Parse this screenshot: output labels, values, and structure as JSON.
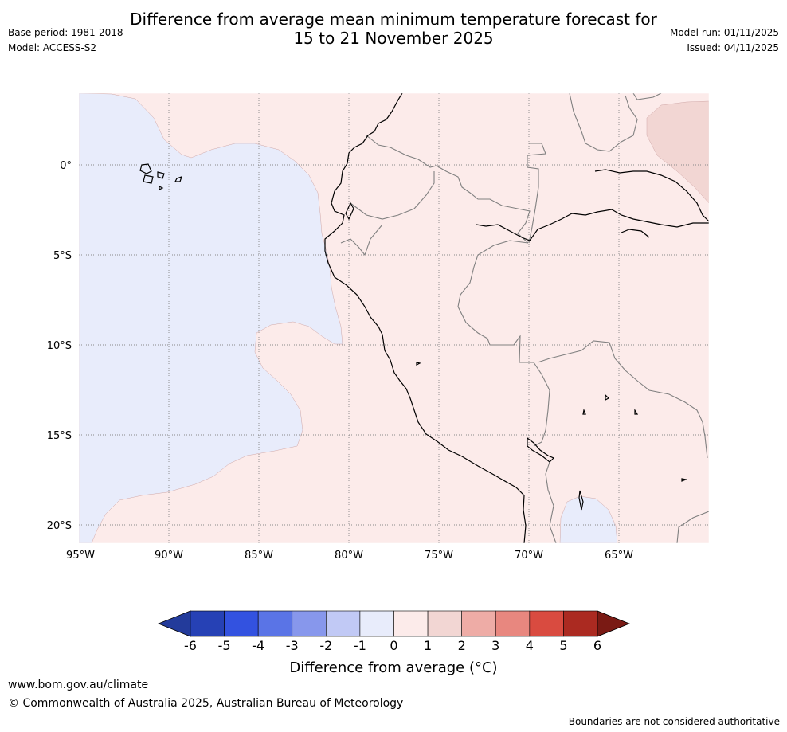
{
  "header": {
    "title_line1": "Difference from average mean minimum temperature forecast for",
    "title_line2": "15 to 21 November 2025",
    "base_period": "Base period: 1981-2018",
    "model": "Model: ACCESS-S2",
    "model_run": "Model run: 01/11/2025",
    "issued": "Issued: 04/11/2025"
  },
  "map": {
    "lat_labels": [
      "0°",
      "5°S",
      "10°S",
      "15°S",
      "20°S"
    ],
    "lon_labels": [
      "95°W",
      "90°W",
      "85°W",
      "80°W",
      "75°W",
      "70°W",
      "65°W"
    ],
    "colors": {
      "ocean_anomaly": "#e8ecfb",
      "land_anomaly": "#fcebea",
      "warm_patch": "#f2d6d3",
      "grid": "#888888",
      "coast": "#000000",
      "border": "#808080"
    }
  },
  "colorbar": {
    "labels": [
      "-6",
      "-5",
      "-4",
      "-3",
      "-2",
      "-1",
      "0",
      "1",
      "2",
      "3",
      "4",
      "5",
      "6"
    ],
    "colors": [
      "#233b9b",
      "#2641b5",
      "#3352e0",
      "#5a74e6",
      "#8797ec",
      "#c1c9f5",
      "#e8ecfb",
      "#fcebea",
      "#f2d6d3",
      "#eeaca6",
      "#e8877f",
      "#d94b40",
      "#ab2a21",
      "#7a1a14"
    ],
    "title": "Difference from average (°C)"
  },
  "footer": {
    "url": "www.bom.gov.au/climate",
    "copyright": "© Commonwealth of Australia 2025, Australian Bureau of Meteorology",
    "note": "Boundaries are not considered authoritative"
  }
}
